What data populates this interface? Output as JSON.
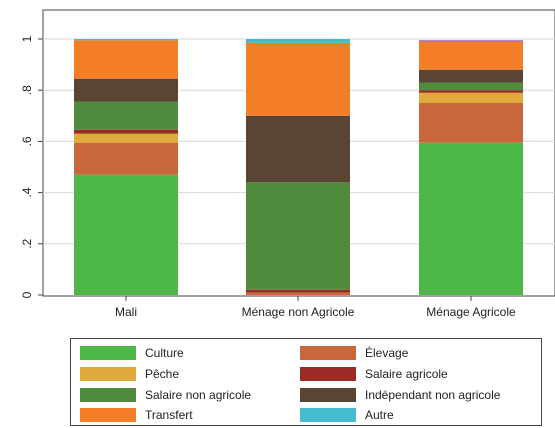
{
  "chart_data": {
    "type": "bar",
    "stacked": true,
    "categories": [
      "Mali",
      "Ménage non Agricole",
      "Ménage Agricole"
    ],
    "ylim": [
      0,
      1.04
    ],
    "yticks": [
      {
        "value": 0,
        "label": "0"
      },
      {
        "value": 0.2,
        "label": ".2"
      },
      {
        "value": 0.4,
        "label": ".4"
      },
      {
        "value": 0.6,
        "label": ".6"
      },
      {
        "value": 0.8,
        "label": ".8"
      },
      {
        "value": 1,
        "label": "1"
      }
    ],
    "grid": true,
    "legend_position": "bottom",
    "series": [
      {
        "name": "Culture",
        "color": "#4db848",
        "values": [
          0.47,
          0.0,
          0.595
        ]
      },
      {
        "name": "Élevage",
        "color": "#c8673a",
        "values": [
          0.125,
          0.01,
          0.155
        ]
      },
      {
        "name": "Pêche",
        "color": "#e0ab3c",
        "values": [
          0.035,
          0.0,
          0.04
        ]
      },
      {
        "name": "Salaire agricole",
        "color": "#9e2a25",
        "values": [
          0.015,
          0.01,
          0.01
        ]
      },
      {
        "name": "Salaire non agricole",
        "color": "#4f8a3d",
        "values": [
          0.11,
          0.42,
          0.03
        ]
      },
      {
        "name": "Indépendant non agricole",
        "color": "#5a4535",
        "values": [
          0.09,
          0.26,
          0.05
        ]
      },
      {
        "name": "Transfert",
        "color": "#f47e28",
        "values": [
          0.15,
          0.285,
          0.11
        ]
      },
      {
        "name": "Autre",
        "color": "#44bccd",
        "values": [
          0.005,
          0.015,
          0.0
        ]
      }
    ],
    "extra_top_band": {
      "category": "Ménage Agricole",
      "color": "#9b59b6",
      "value": 0.005
    }
  }
}
